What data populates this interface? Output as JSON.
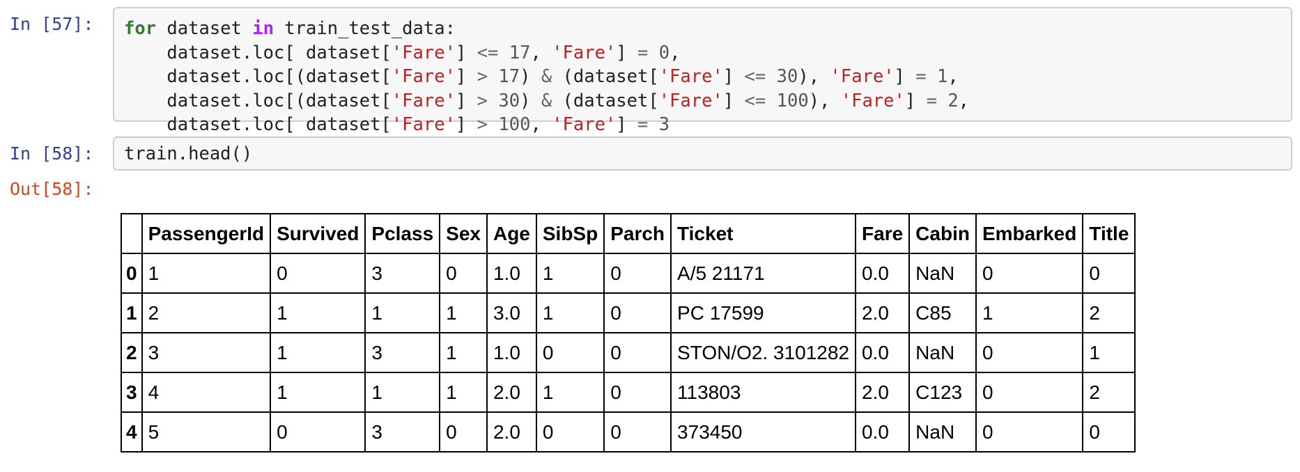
{
  "cells": [
    {
      "prompt": "In [57]:",
      "code_lines": [
        [
          {
            "t": "for",
            "c": "kw"
          },
          {
            "t": " dataset "
          },
          {
            "t": "in",
            "c": "kw2"
          },
          {
            "t": " train_test_data:"
          }
        ],
        [
          {
            "t": "    dataset.loc[ dataset["
          },
          {
            "t": "'Fare'",
            "c": "str"
          },
          {
            "t": "] "
          },
          {
            "t": "<=",
            "c": "op"
          },
          {
            "t": " "
          },
          {
            "t": "17",
            "c": "num"
          },
          {
            "t": ", "
          },
          {
            "t": "'Fare'",
            "c": "str"
          },
          {
            "t": "] "
          },
          {
            "t": "=",
            "c": "op"
          },
          {
            "t": " "
          },
          {
            "t": "0",
            "c": "num"
          },
          {
            "t": ","
          }
        ],
        [
          {
            "t": "    dataset.loc[(dataset["
          },
          {
            "t": "'Fare'",
            "c": "str"
          },
          {
            "t": "] "
          },
          {
            "t": ">",
            "c": "op"
          },
          {
            "t": " "
          },
          {
            "t": "17",
            "c": "num"
          },
          {
            "t": ") "
          },
          {
            "t": "&",
            "c": "op"
          },
          {
            "t": " (dataset["
          },
          {
            "t": "'Fare'",
            "c": "str"
          },
          {
            "t": "] "
          },
          {
            "t": "<=",
            "c": "op"
          },
          {
            "t": " "
          },
          {
            "t": "30",
            "c": "num"
          },
          {
            "t": "), "
          },
          {
            "t": "'Fare'",
            "c": "str"
          },
          {
            "t": "] "
          },
          {
            "t": "=",
            "c": "op"
          },
          {
            "t": " "
          },
          {
            "t": "1",
            "c": "num"
          },
          {
            "t": ","
          }
        ],
        [
          {
            "t": "    dataset.loc[(dataset["
          },
          {
            "t": "'Fare'",
            "c": "str"
          },
          {
            "t": "] "
          },
          {
            "t": ">",
            "c": "op"
          },
          {
            "t": " "
          },
          {
            "t": "30",
            "c": "num"
          },
          {
            "t": ") "
          },
          {
            "t": "&",
            "c": "op"
          },
          {
            "t": " (dataset["
          },
          {
            "t": "'Fare'",
            "c": "str"
          },
          {
            "t": "] "
          },
          {
            "t": "<=",
            "c": "op"
          },
          {
            "t": " "
          },
          {
            "t": "100",
            "c": "num"
          },
          {
            "t": "), "
          },
          {
            "t": "'Fare'",
            "c": "str"
          },
          {
            "t": "] "
          },
          {
            "t": "=",
            "c": "op"
          },
          {
            "t": " "
          },
          {
            "t": "2",
            "c": "num"
          },
          {
            "t": ","
          }
        ],
        [
          {
            "t": "    dataset.loc[ dataset["
          },
          {
            "t": "'Fare'",
            "c": "str"
          },
          {
            "t": "] "
          },
          {
            "t": ">",
            "c": "op"
          },
          {
            "t": " "
          },
          {
            "t": "100",
            "c": "num"
          },
          {
            "t": ", "
          },
          {
            "t": "'Fare'",
            "c": "str"
          },
          {
            "t": "] "
          },
          {
            "t": "=",
            "c": "op"
          },
          {
            "t": " "
          },
          {
            "t": "3",
            "c": "num"
          }
        ]
      ]
    },
    {
      "prompt": "In [58]:",
      "code_lines": [
        [
          {
            "t": "train.head()"
          }
        ]
      ],
      "output_prompt": "Out[58]:"
    }
  ],
  "dataframe": {
    "columns": [
      "",
      "PassengerId",
      "Survived",
      "Pclass",
      "Sex",
      "Age",
      "SibSp",
      "Parch",
      "Ticket",
      "Fare",
      "Cabin",
      "Embarked",
      "Title"
    ],
    "rows": [
      {
        "index": "0",
        "values": [
          "1",
          "0",
          "3",
          "0",
          "1.0",
          "1",
          "0",
          "A/5 21171",
          "0.0",
          "NaN",
          "0",
          "0"
        ]
      },
      {
        "index": "1",
        "values": [
          "2",
          "1",
          "1",
          "1",
          "3.0",
          "1",
          "0",
          "PC 17599",
          "2.0",
          "C85",
          "1",
          "2"
        ]
      },
      {
        "index": "2",
        "values": [
          "3",
          "1",
          "3",
          "1",
          "1.0",
          "0",
          "0",
          "STON/O2. 3101282",
          "0.0",
          "NaN",
          "0",
          "1"
        ]
      },
      {
        "index": "3",
        "values": [
          "4",
          "1",
          "1",
          "1",
          "2.0",
          "1",
          "0",
          "113803",
          "2.0",
          "C123",
          "0",
          "2"
        ]
      },
      {
        "index": "4",
        "values": [
          "5",
          "0",
          "3",
          "0",
          "2.0",
          "0",
          "0",
          "373450",
          "0.0",
          "NaN",
          "0",
          "0"
        ]
      }
    ]
  },
  "colors": {
    "in_prompt": "#303f9f",
    "out_prompt": "#d84315",
    "keyword": "#2e7d32",
    "operator_keyword": "#aa22ff",
    "string": "#ba2121",
    "cell_background": "#f7f7f7"
  }
}
